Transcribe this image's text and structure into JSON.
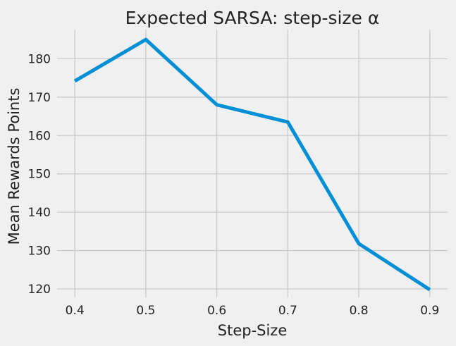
{
  "chart_data": {
    "type": "line",
    "title": "Expected SARSA: step-size α",
    "xlabel": "Step-Size",
    "ylabel": "Mean Rewards Points",
    "x": [
      0.4,
      0.5,
      0.6,
      0.7,
      0.8,
      0.9
    ],
    "x_ticks": [
      "0.4",
      "0.5",
      "0.6",
      "0.7",
      "0.8",
      "0.9"
    ],
    "y_ticks": [
      "120",
      "130",
      "140",
      "150",
      "160",
      "170",
      "180"
    ],
    "xlim": [
      0.375,
      0.925
    ],
    "ylim": [
      117.8,
      187.6
    ],
    "grid": true,
    "series": [
      {
        "values": [
          174.2,
          185.0,
          168.0,
          163.5,
          131.8,
          119.8
        ],
        "color": "#008fd5"
      }
    ]
  }
}
